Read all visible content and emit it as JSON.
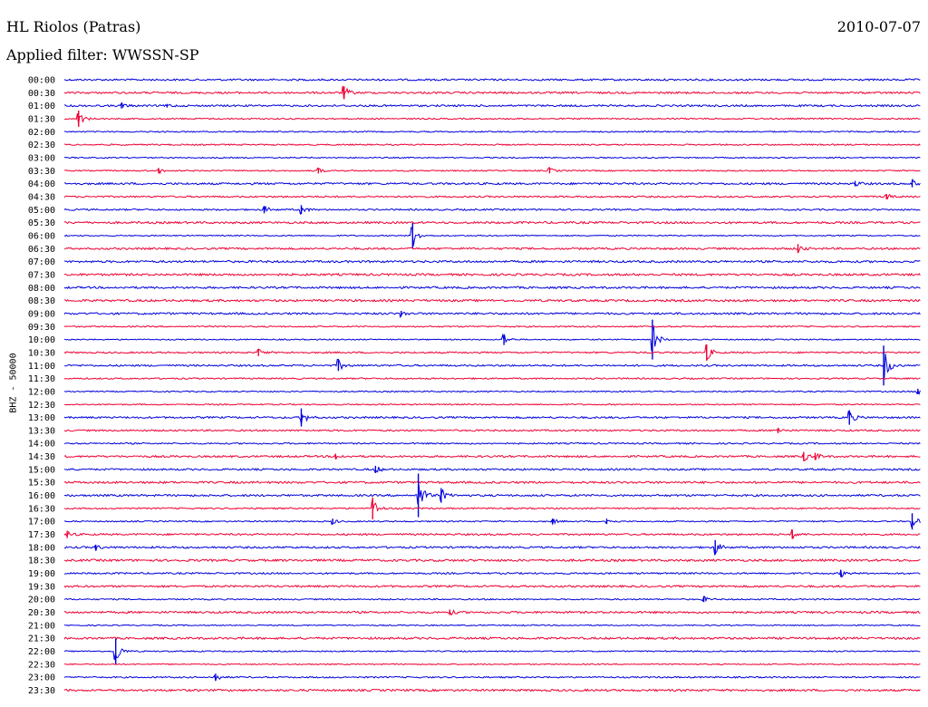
{
  "header": {
    "station": "HL Riolos (Patras)",
    "date": "2010-07-07",
    "filter": "Applied filter: WWSSN-SP"
  },
  "chart_data": {
    "type": "line",
    "description_kind": "helicorder",
    "title": "HL Riolos (Patras)",
    "ylabel": "BHZ - 50000",
    "grid": false,
    "trace_colors": [
      "#0000dd",
      "#ee0033"
    ],
    "rows": [
      {
        "label": "00:00",
        "events": []
      },
      {
        "label": "00:30",
        "events": [
          {
            "minute": 9.8,
            "amp": 7
          }
        ]
      },
      {
        "label": "01:00",
        "events": [
          {
            "minute": 2.0,
            "amp": 3
          },
          {
            "minute": 3.6,
            "amp": 2
          }
        ]
      },
      {
        "label": "01:30",
        "events": [
          {
            "minute": 0.5,
            "amp": 9
          }
        ]
      },
      {
        "label": "02:00",
        "events": []
      },
      {
        "label": "02:30",
        "events": []
      },
      {
        "label": "03:00",
        "events": []
      },
      {
        "label": "03:30",
        "events": [
          {
            "minute": 3.3,
            "amp": 3
          },
          {
            "minute": 8.9,
            "amp": 3
          },
          {
            "minute": 17.0,
            "amp": 3
          }
        ]
      },
      {
        "label": "04:00",
        "events": [
          {
            "minute": 27.7,
            "amp": 3
          },
          {
            "minute": 29.7,
            "amp": 4
          }
        ]
      },
      {
        "label": "04:30",
        "events": [
          {
            "minute": 28.8,
            "amp": 3
          }
        ]
      },
      {
        "label": "05:00",
        "events": [
          {
            "minute": 7.0,
            "amp": 4
          },
          {
            "minute": 8.3,
            "amp": 5
          }
        ]
      },
      {
        "label": "05:30",
        "events": []
      },
      {
        "label": "06:00",
        "events": [
          {
            "minute": 12.2,
            "amp": 14
          }
        ]
      },
      {
        "label": "06:30",
        "events": [
          {
            "minute": 25.7,
            "amp": 5
          }
        ]
      },
      {
        "label": "07:00",
        "events": []
      },
      {
        "label": "07:30",
        "events": []
      },
      {
        "label": "08:00",
        "events": []
      },
      {
        "label": "08:30",
        "events": []
      },
      {
        "label": "09:00",
        "events": [
          {
            "minute": 11.8,
            "amp": 3
          }
        ]
      },
      {
        "label": "09:30",
        "events": []
      },
      {
        "label": "10:00",
        "events": [
          {
            "minute": 15.4,
            "amp": 6
          },
          {
            "minute": 20.6,
            "amp": 22
          }
        ]
      },
      {
        "label": "10:30",
        "events": [
          {
            "minute": 6.8,
            "amp": 4
          },
          {
            "minute": 22.5,
            "amp": 9
          }
        ]
      },
      {
        "label": "11:00",
        "events": [
          {
            "minute": 9.6,
            "amp": 6
          },
          {
            "minute": 28.7,
            "amp": 22
          }
        ]
      },
      {
        "label": "11:30",
        "events": []
      },
      {
        "label": "12:00",
        "events": [
          {
            "minute": 29.9,
            "amp": 3
          }
        ]
      },
      {
        "label": "12:30",
        "events": []
      },
      {
        "label": "13:00",
        "events": [
          {
            "minute": 8.3,
            "amp": 10
          },
          {
            "minute": 27.5,
            "amp": 8
          }
        ]
      },
      {
        "label": "13:30",
        "events": [
          {
            "minute": 25.0,
            "amp": 3
          }
        ]
      },
      {
        "label": "14:00",
        "events": []
      },
      {
        "label": "14:30",
        "events": [
          {
            "minute": 9.5,
            "amp": 3
          },
          {
            "minute": 25.9,
            "amp": 5
          },
          {
            "minute": 26.3,
            "amp": 4
          }
        ]
      },
      {
        "label": "15:00",
        "events": [
          {
            "minute": 10.9,
            "amp": 4
          }
        ]
      },
      {
        "label": "15:30",
        "events": []
      },
      {
        "label": "16:00",
        "events": [
          {
            "minute": 12.4,
            "amp": 24
          },
          {
            "minute": 13.2,
            "amp": 8
          }
        ]
      },
      {
        "label": "16:30",
        "events": [
          {
            "minute": 10.8,
            "amp": 12
          }
        ]
      },
      {
        "label": "17:00",
        "events": [
          {
            "minute": 9.4,
            "amp": 3
          },
          {
            "minute": 17.1,
            "amp": 3
          },
          {
            "minute": 19.0,
            "amp": 3
          },
          {
            "minute": 29.7,
            "amp": 9
          }
        ]
      },
      {
        "label": "17:30",
        "events": [
          {
            "minute": 0.1,
            "amp": 4
          },
          {
            "minute": 25.5,
            "amp": 5
          }
        ]
      },
      {
        "label": "18:00",
        "events": [
          {
            "minute": 1.1,
            "amp": 3
          },
          {
            "minute": 22.8,
            "amp": 8
          }
        ]
      },
      {
        "label": "18:30",
        "events": []
      },
      {
        "label": "19:00",
        "events": [
          {
            "minute": 27.2,
            "amp": 4
          }
        ]
      },
      {
        "label": "19:30",
        "events": []
      },
      {
        "label": "20:00",
        "events": [
          {
            "minute": 22.4,
            "amp": 3
          }
        ]
      },
      {
        "label": "20:30",
        "events": [
          {
            "minute": 13.5,
            "amp": 3
          }
        ]
      },
      {
        "label": "21:00",
        "events": []
      },
      {
        "label": "21:30",
        "events": []
      },
      {
        "label": "22:00",
        "events": [
          {
            "minute": 1.8,
            "amp": 14
          }
        ]
      },
      {
        "label": "22:30",
        "events": []
      },
      {
        "label": "23:00",
        "events": [
          {
            "minute": 5.3,
            "amp": 4
          }
        ]
      },
      {
        "label": "23:30",
        "events": []
      }
    ]
  }
}
